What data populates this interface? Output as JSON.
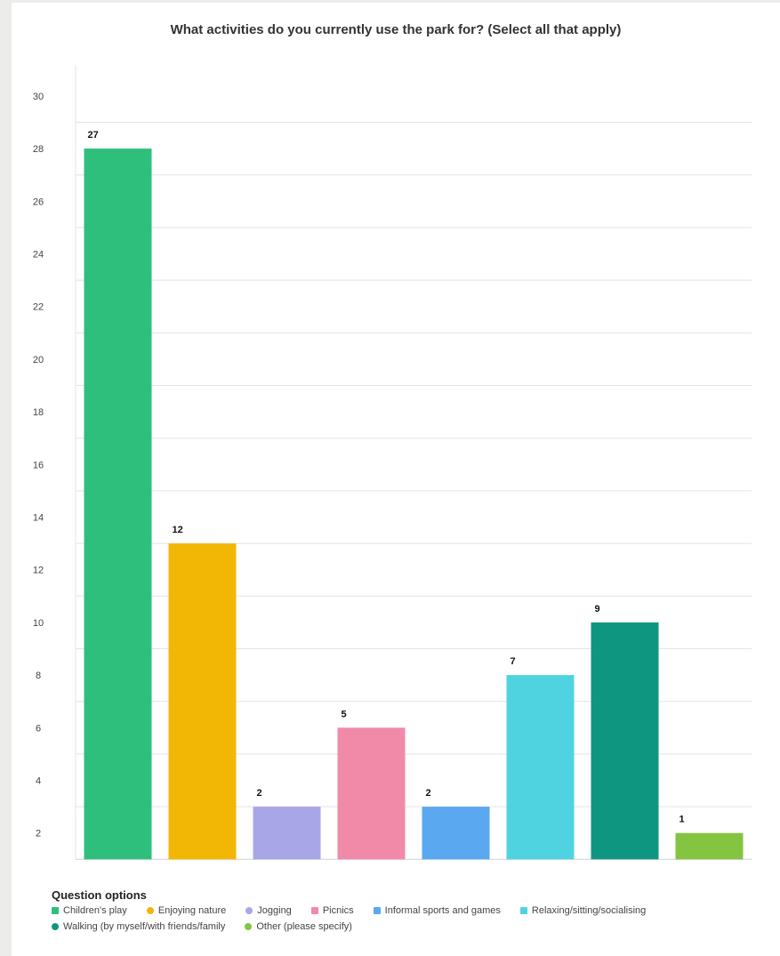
{
  "chart_data": {
    "type": "bar",
    "title": "What activities do you currently use the park for? (Select all that apply)",
    "categories": [
      "Children's play",
      "Enjoying nature",
      "Jogging",
      "Picnics",
      "Informal sports and games",
      "Relaxing/sitting/socialising",
      "Walking (by myself/with friends/family",
      "Other (please specify)"
    ],
    "values": [
      27,
      12,
      2,
      5,
      2,
      7,
      9,
      1
    ],
    "data_labels": [
      "27",
      "12",
      "2",
      "5",
      "2",
      "7",
      "9",
      "1"
    ],
    "colors": [
      "#2fbf7c",
      "#f2b705",
      "#a9a6e8",
      "#f08aa8",
      "#5aa8ef",
      "#4fd3e0",
      "#0f9680",
      "#84c440"
    ],
    "legend_shapes": [
      "square",
      "round",
      "round",
      "square",
      "square",
      "square",
      "round",
      "round"
    ],
    "yticks": [
      "30",
      "28",
      "26",
      "24",
      "22",
      "20",
      "18",
      "16",
      "14",
      "12",
      "10",
      "8",
      "6",
      "4",
      "2"
    ],
    "ylim": [
      1,
      30
    ],
    "grid": true,
    "legend_title": "Question options",
    "legend_position": "bottom-left",
    "xlabel": "",
    "ylabel": ""
  }
}
